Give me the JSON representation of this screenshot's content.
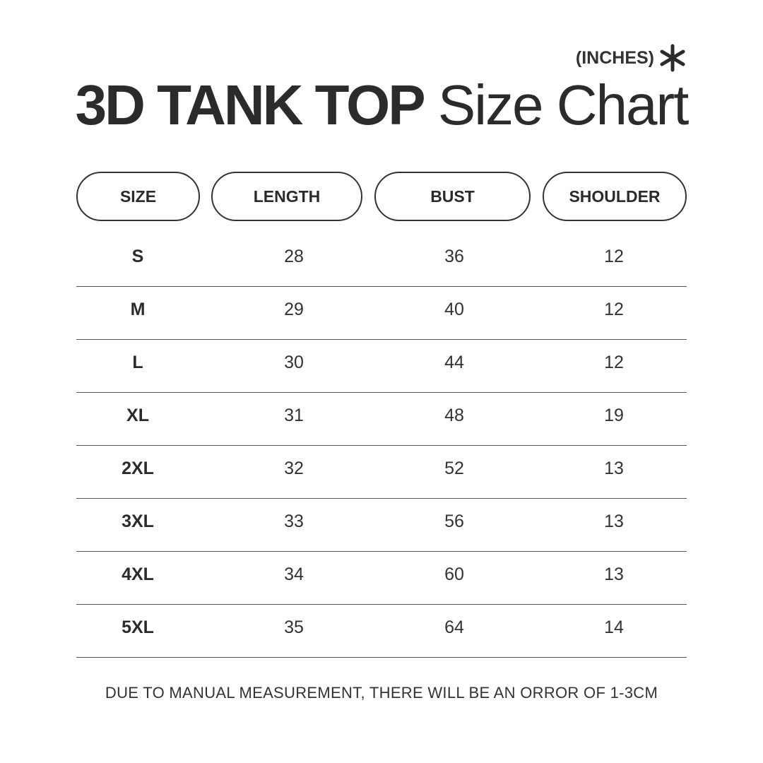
{
  "unit": {
    "label": "(INCHES)",
    "icon": "asterisk-icon"
  },
  "title": {
    "bold": "3D TANK TOP",
    "light": "Size Chart"
  },
  "headers": [
    "SIZE",
    "LENGTH",
    "BUST",
    "SHOULDER"
  ],
  "rows": [
    [
      "S",
      "28",
      "36",
      "12"
    ],
    [
      "M",
      "29",
      "40",
      "12"
    ],
    [
      "L",
      "30",
      "44",
      "12"
    ],
    [
      "XL",
      "31",
      "48",
      "19"
    ],
    [
      "2XL",
      "32",
      "52",
      "13"
    ],
    [
      "3XL",
      "33",
      "56",
      "13"
    ],
    [
      "4XL",
      "34",
      "60",
      "13"
    ],
    [
      "5XL",
      "35",
      "64",
      "14"
    ]
  ],
  "footer": "DUE TO MANUAL MEASUREMENT, THERE WILL BE AN ORROR OF 1-3CM",
  "colors": {
    "text": "#2b2b2b",
    "border": "#333333",
    "background": "#ffffff"
  }
}
